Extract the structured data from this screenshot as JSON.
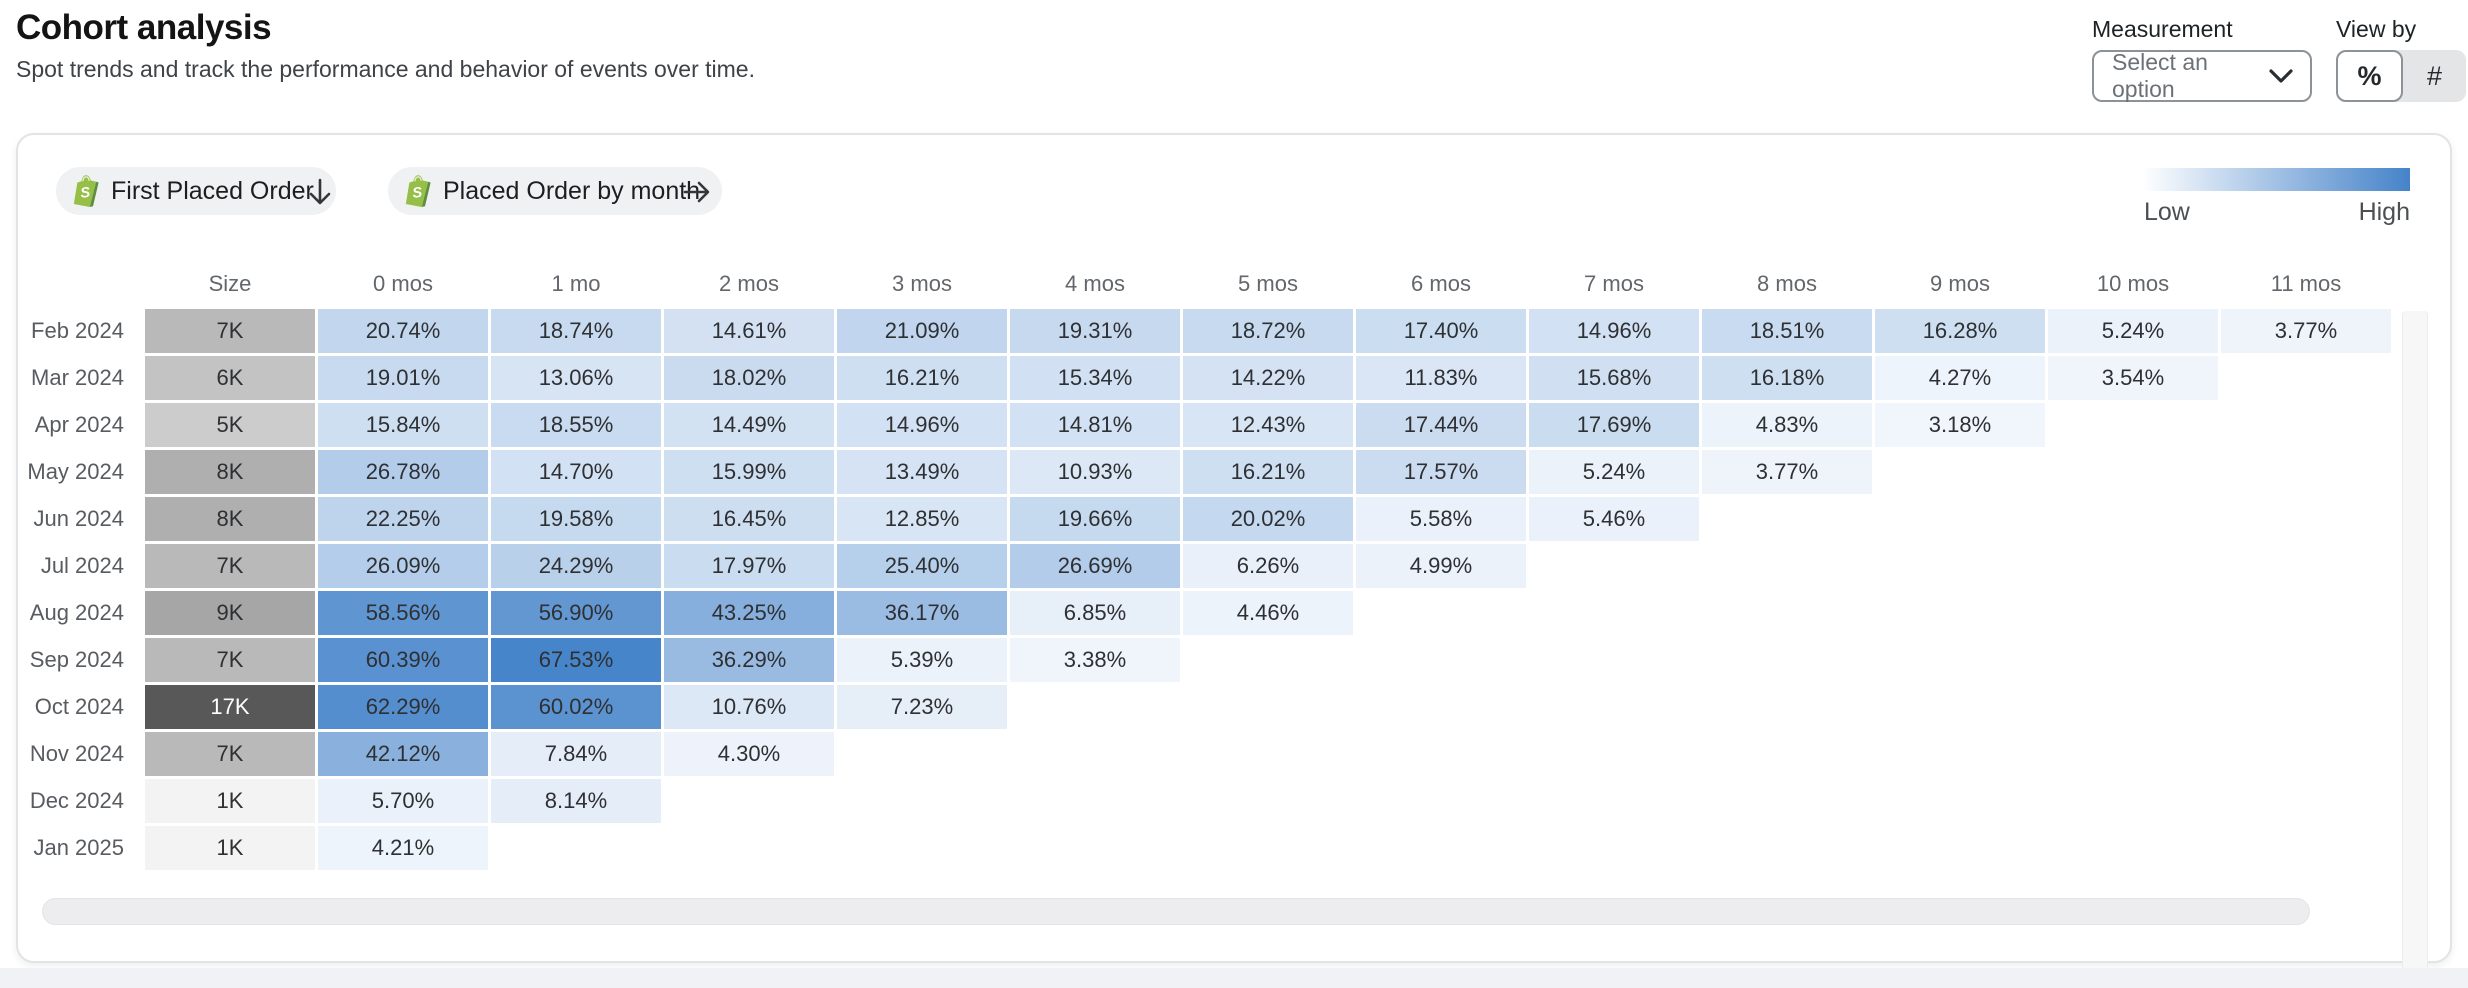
{
  "header": {
    "title": "Cohort analysis",
    "subtitle": "Spot trends and track the performance and behavior of events over time.",
    "measurement_label": "Measurement",
    "measurement_value": "Select an option",
    "view_by_label": "View by",
    "view_percent_label": "%",
    "view_count_label": "#"
  },
  "filters": {
    "first_event": "First Placed Order",
    "return_event": "Placed Order by month"
  },
  "legend": {
    "low_label": "Low",
    "high_label": "High",
    "low_color": "#fdfeff",
    "high_color": "#4583c9"
  },
  "table": {
    "columns": [
      "Size",
      "0 mos",
      "1 mo",
      "2 mos",
      "3 mos",
      "4 mos",
      "5 mos",
      "6 mos",
      "7 mos",
      "8 mos",
      "9 mos",
      "10 mos",
      "11 mos"
    ],
    "max_value": 68,
    "rows": [
      {
        "label": "Feb 2024",
        "size": "7K",
        "size_k": 7,
        "values": [
          20.74,
          18.74,
          14.61,
          21.09,
          19.31,
          18.72,
          17.4,
          14.96,
          18.51,
          16.28,
          5.24,
          3.77
        ]
      },
      {
        "label": "Mar 2024",
        "size": "6K",
        "size_k": 6,
        "values": [
          19.01,
          13.06,
          18.02,
          16.21,
          15.34,
          14.22,
          11.83,
          15.68,
          16.18,
          4.27,
          3.54
        ]
      },
      {
        "label": "Apr 2024",
        "size": "5K",
        "size_k": 5,
        "values": [
          15.84,
          18.55,
          14.49,
          14.96,
          14.81,
          12.43,
          17.44,
          17.69,
          4.83,
          3.18
        ]
      },
      {
        "label": "May 2024",
        "size": "8K",
        "size_k": 8,
        "values": [
          26.78,
          14.7,
          15.99,
          13.49,
          10.93,
          16.21,
          17.57,
          5.24,
          3.77
        ]
      },
      {
        "label": "Jun 2024",
        "size": "8K",
        "size_k": 8,
        "values": [
          22.25,
          19.58,
          16.45,
          12.85,
          19.66,
          20.02,
          5.58,
          5.46
        ]
      },
      {
        "label": "Jul 2024",
        "size": "7K",
        "size_k": 7,
        "values": [
          26.09,
          24.29,
          17.97,
          25.4,
          26.69,
          6.26,
          4.99
        ]
      },
      {
        "label": "Aug 2024",
        "size": "9K",
        "size_k": 9,
        "values": [
          58.56,
          56.9,
          43.25,
          36.17,
          6.85,
          4.46
        ]
      },
      {
        "label": "Sep 2024",
        "size": "7K",
        "size_k": 7,
        "values": [
          60.39,
          67.53,
          36.29,
          5.39,
          3.38
        ]
      },
      {
        "label": "Oct 2024",
        "size": "17K",
        "size_k": 17,
        "values": [
          62.29,
          60.02,
          10.76,
          7.23
        ]
      },
      {
        "label": "Nov 2024",
        "size": "7K",
        "size_k": 7,
        "values": [
          42.12,
          7.84,
          4.3
        ]
      },
      {
        "label": "Dec 2024",
        "size": "1K",
        "size_k": 1,
        "values": [
          5.7,
          8.14
        ]
      },
      {
        "label": "Jan 2025",
        "size": "1K",
        "size_k": 1,
        "values": [
          4.21
        ]
      }
    ]
  },
  "colors": {
    "heat_low_rgb": [
      249,
      251,
      254
    ],
    "heat_high_rgb": [
      70,
      132,
      202
    ],
    "size_low_rgb": [
      243,
      243,
      243
    ],
    "size_high_rgb": [
      88,
      88,
      88
    ]
  }
}
